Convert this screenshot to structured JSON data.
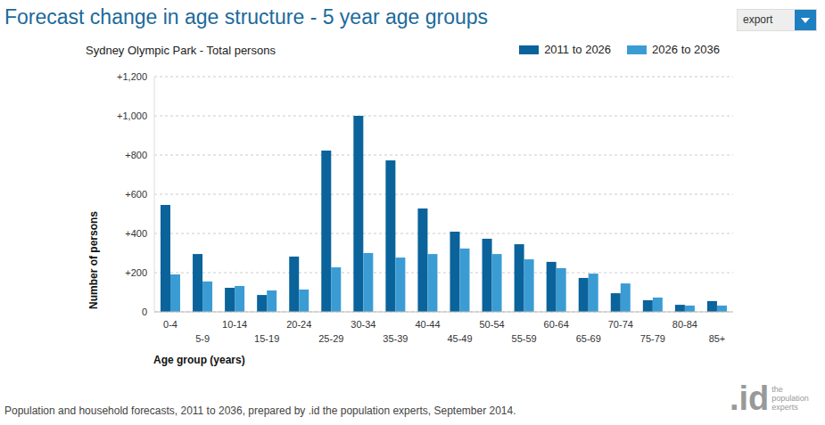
{
  "chart_data": {
    "type": "bar",
    "title": "Forecast change in age structure - 5 year age groups",
    "subtitle": "Sydney Olympic Park - Total persons",
    "x_label": "Age group (years)",
    "y_label": "Number of persons",
    "annotations": [
      "Population and household forecasts, 2011 to 2036, prepared by .id the population experts, September 2014.",
      "export",
      ".id",
      "the population experts"
    ],
    "categories": [
      "0-4",
      "5-9",
      "10-14",
      "15-19",
      "20-24",
      "25-29",
      "30-34",
      "35-39",
      "40-44",
      "45-49",
      "50-54",
      "55-59",
      "60-64",
      "65-69",
      "70-74",
      "75-79",
      "80-84",
      "85+"
    ],
    "series": [
      {
        "name": "2011 to 2026",
        "color": "#0a639a",
        "values": [
          545,
          295,
          123,
          86,
          282,
          823,
          1000,
          773,
          527,
          409,
          373,
          345,
          255,
          173,
          95,
          59,
          36,
          55
        ]
      },
      {
        "name": "2026 to 2036",
        "color": "#3b9cd4",
        "values": [
          191,
          155,
          132,
          109,
          114,
          227,
          300,
          277,
          295,
          323,
          295,
          268,
          223,
          195,
          145,
          73,
          32,
          32
        ]
      }
    ],
    "ylim": [
      0,
      1200
    ],
    "yticks": [
      0,
      {
        "value": 200,
        "label": "+200"
      },
      {
        "value": 400,
        "label": "+400"
      },
      {
        "value": 600,
        "label": "+600"
      },
      {
        "value": 800,
        "label": "+800"
      },
      {
        "value": 1000,
        "label": "+1,000"
      },
      {
        "value": 1200,
        "label": "+1,200"
      }
    ],
    "grid": true,
    "legend": "top-right"
  }
}
